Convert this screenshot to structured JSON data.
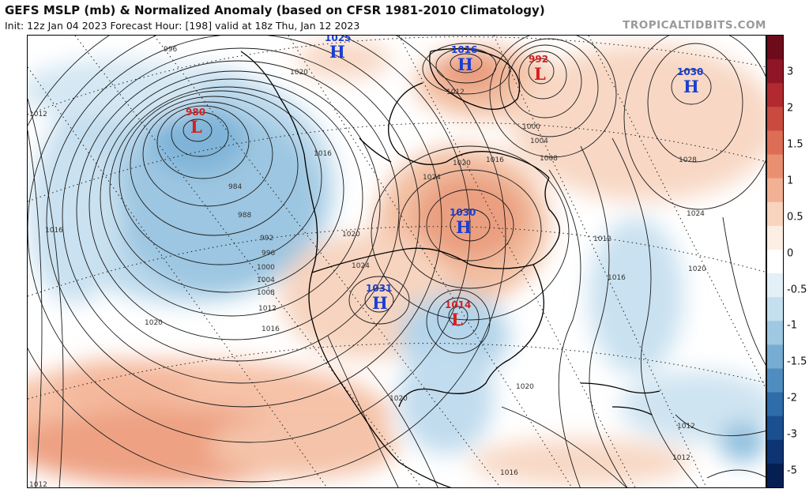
{
  "header": {
    "title": "GEFS MSLP (mb) & Normalized Anomaly (based on CFSR 1981-2010 Climatology)",
    "subtitle": "Init: 12z Jan 04 2023   Forecast Hour: [198]   valid at 18z Thu, Jan 12 2023",
    "source": "TROPICALTIDBITS.COM"
  },
  "colorbar": {
    "ticks": [
      "3",
      "2",
      "1.5",
      "1",
      "0.5",
      "0",
      "-0.5",
      "-1",
      "-1.5",
      "-2",
      "-3",
      "-5"
    ],
    "colors": [
      "#6e0b1a",
      "#8e1626",
      "#b02a30",
      "#c94a3f",
      "#dd6d54",
      "#ea9070",
      "#f2b195",
      "#f8d3bd",
      "#fdeee4",
      "#ffffff",
      "#e4f0f7",
      "#c4dfee",
      "#9fc9e2",
      "#77acd3",
      "#4f8dc0",
      "#2e6caa",
      "#1a4f90",
      "#0d3373",
      "#061f52"
    ]
  },
  "pressure_centers": [
    {
      "type": "H",
      "value": "1025"
    },
    {
      "type": "H",
      "value": "1016"
    },
    {
      "type": "L",
      "value": "992"
    },
    {
      "type": "H",
      "value": "1030"
    },
    {
      "type": "L",
      "value": "980"
    },
    {
      "type": "H",
      "value": "1030"
    },
    {
      "type": "H",
      "value": "1031"
    },
    {
      "type": "L",
      "value": "1014"
    }
  ],
  "isobar_labels": [
    "996",
    "1020",
    "1012",
    "1012",
    "1000",
    "1004",
    "1008",
    "1016",
    "1020",
    "1016",
    "1028",
    "984",
    "1024",
    "988",
    "1016",
    "1020",
    "992",
    "1024",
    "996",
    "1012",
    "1000",
    "1024",
    "1020",
    "1004",
    "1016",
    "1008",
    "1012",
    "1016",
    "1020",
    "1020",
    "1020",
    "1012",
    "1012",
    "1016",
    "1012"
  ]
}
